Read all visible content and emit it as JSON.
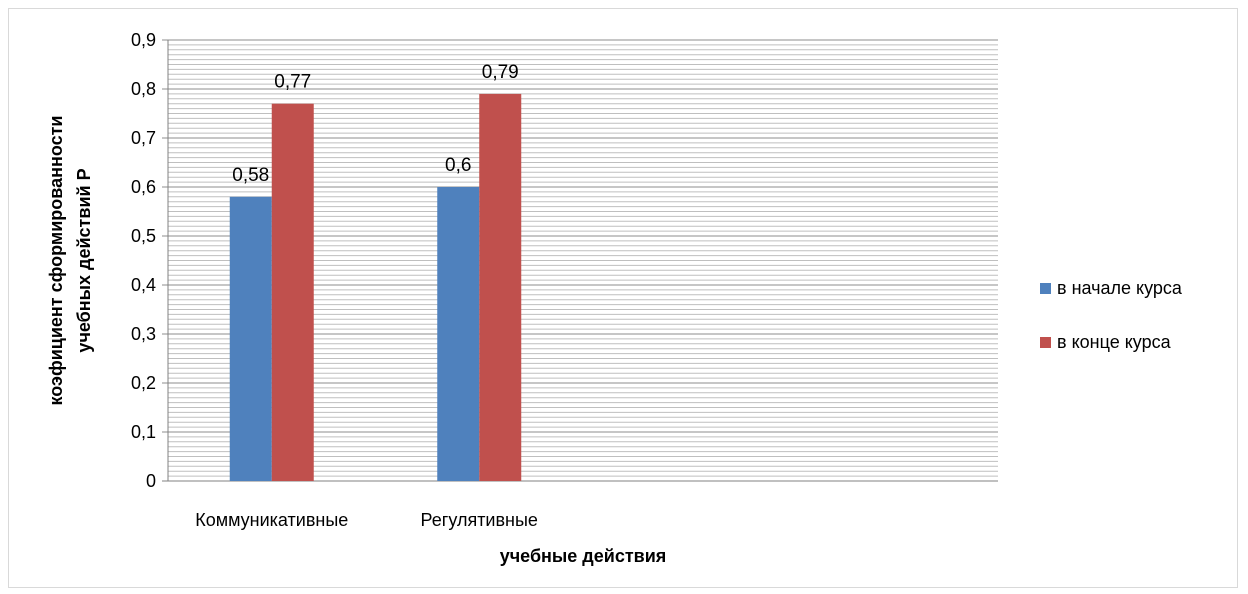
{
  "chart_data": {
    "type": "bar",
    "title": "",
    "xlabel": "учебные действия",
    "ylabel_lines": [
      "коэфициент сформированности",
      "учебных действий Р"
    ],
    "categories": [
      "Коммуникативные",
      "Регулятивные",
      "",
      ""
    ],
    "ylim": [
      0,
      0.9
    ],
    "yticks": [
      "0",
      "0,1",
      "0,2",
      "0,3",
      "0,4",
      "0,5",
      "0,6",
      "0,7",
      "0,8",
      "0,9"
    ],
    "minor_grid": true,
    "legend_position": "right",
    "series": [
      {
        "name": "в начале курса",
        "color": "#4F81BD",
        "values": [
          0.58,
          0.6,
          null,
          null
        ],
        "labels": [
          "0,58",
          "0,6",
          "",
          ""
        ]
      },
      {
        "name": "в конце курса",
        "color": "#C0504D",
        "values": [
          0.77,
          0.79,
          null,
          null
        ],
        "labels": [
          "0,77",
          "0,79",
          "",
          ""
        ]
      }
    ]
  }
}
